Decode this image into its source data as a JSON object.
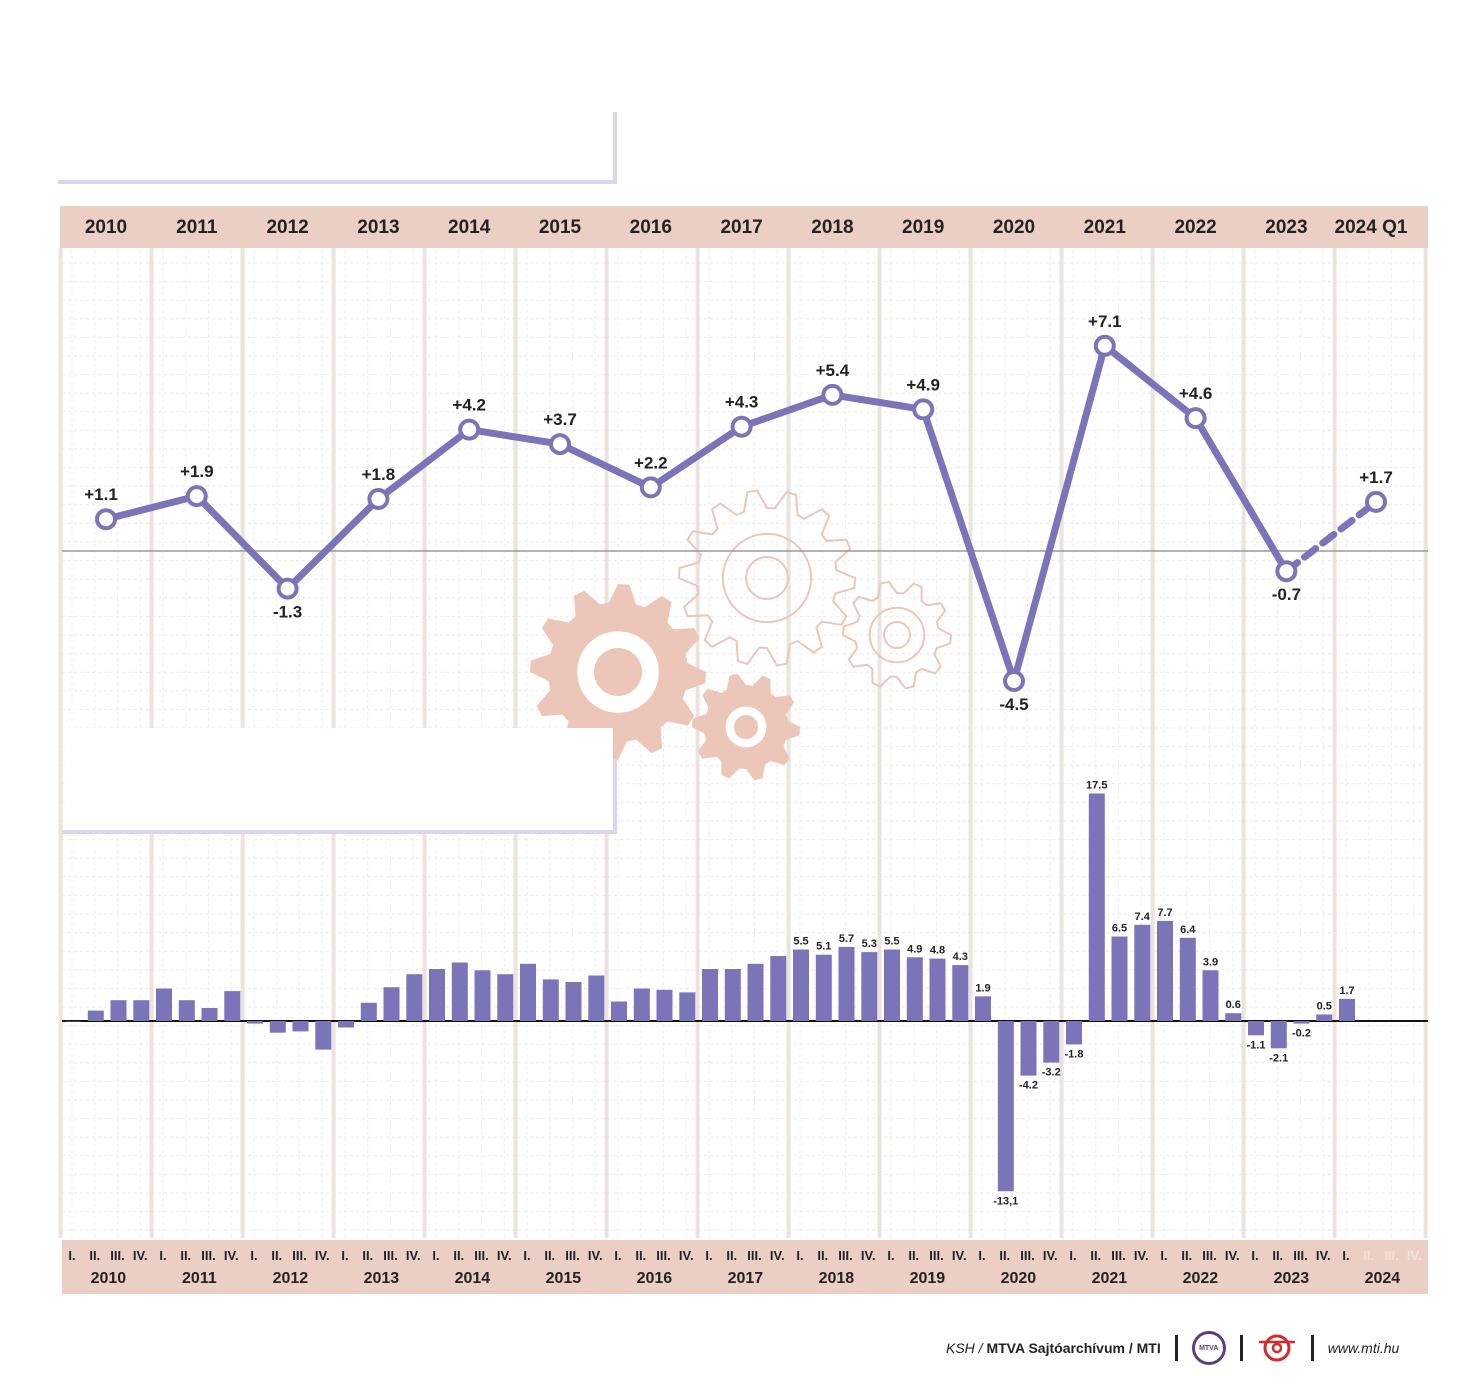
{
  "colors": {
    "series": "#7b74b8",
    "band": "#eccfc4",
    "gridline": "#e9e4de",
    "gear_fill": "#ebc6b9",
    "gear_outline": "#e9c7b9",
    "panel_border": "#d9d5ea"
  },
  "icons": [
    "gear-icon",
    "mtva-logo-icon",
    "mti-logo-icon"
  ],
  "chart_data": [
    {
      "type": "line",
      "x": [
        "2010",
        "2011",
        "2012",
        "2013",
        "2014",
        "2015",
        "2016",
        "2017",
        "2018",
        "2019",
        "2020",
        "2021",
        "2022",
        "2023",
        "2024 Q1"
      ],
      "values": [
        1.1,
        1.9,
        -1.3,
        1.8,
        4.2,
        3.7,
        2.2,
        4.3,
        5.4,
        4.9,
        -4.5,
        7.1,
        4.6,
        -0.7,
        1.7
      ],
      "data_labels": [
        "+1.1",
        "+1.9",
        "-1.3",
        "+1.8",
        "+4.2",
        "+3.7",
        "+2.2",
        "+4.3",
        "+5.4",
        "+4.9",
        "-4.5",
        "+7.1",
        "+4.6",
        "-0.7",
        "+1.7"
      ],
      "last_segment_dashed": true,
      "grid": true
    },
    {
      "type": "bar",
      "years": [
        "2010",
        "2011",
        "2012",
        "2013",
        "2014",
        "2015",
        "2016",
        "2017",
        "2018",
        "2019",
        "2020",
        "2021",
        "2022",
        "2023",
        "2024"
      ],
      "quarter_labels": [
        "I.",
        "II.",
        "III.",
        "IV."
      ],
      "values": [
        0.0,
        0.8,
        1.6,
        1.6,
        2.5,
        1.6,
        1.0,
        2.3,
        -0.2,
        -0.9,
        -0.8,
        -2.2,
        -0.5,
        1.4,
        2.6,
        3.6,
        4.0,
        4.5,
        3.9,
        3.6,
        4.4,
        3.2,
        3.0,
        3.5,
        1.5,
        2.5,
        2.4,
        2.2,
        4.0,
        4.0,
        4.4,
        5.0,
        5.5,
        5.1,
        5.7,
        5.3,
        5.5,
        4.9,
        4.8,
        4.3,
        1.9,
        -13.1,
        -4.2,
        -3.2,
        -1.8,
        17.5,
        6.5,
        7.4,
        7.7,
        6.4,
        3.9,
        0.6,
        -1.1,
        -2.1,
        -0.2,
        0.5,
        1.7
      ],
      "data_labels": [
        "",
        "",
        "",
        "",
        "",
        "",
        "",
        "",
        "",
        "",
        "",
        "",
        "",
        "",
        "",
        "",
        "",
        "",
        "",
        "",
        "",
        "",
        "",
        "",
        "",
        "",
        "",
        "",
        "",
        "",
        "",
        "",
        "5.5",
        "5.1",
        "5.7",
        "5.3",
        "5.5",
        "4.9",
        "4.8",
        "4.3",
        "1.9",
        "-13,1",
        "-4.2",
        "-3.2",
        "-1.8",
        "17.5",
        "6.5",
        "7.4",
        "7.7",
        "6.4",
        "3.9",
        "0.6",
        "-1.1",
        "-2.1",
        "-0.2",
        "0.5",
        "1.7"
      ],
      "ylim": [
        -13.1,
        17.5
      ],
      "grid": true
    }
  ],
  "footer": {
    "source_prefix": "KSH",
    "source_slash": " / ",
    "source_main": "MTVA Sajtóarchívum / MTI",
    "mtva_logo_text": "MTVA",
    "url": "www.mti.hu"
  }
}
